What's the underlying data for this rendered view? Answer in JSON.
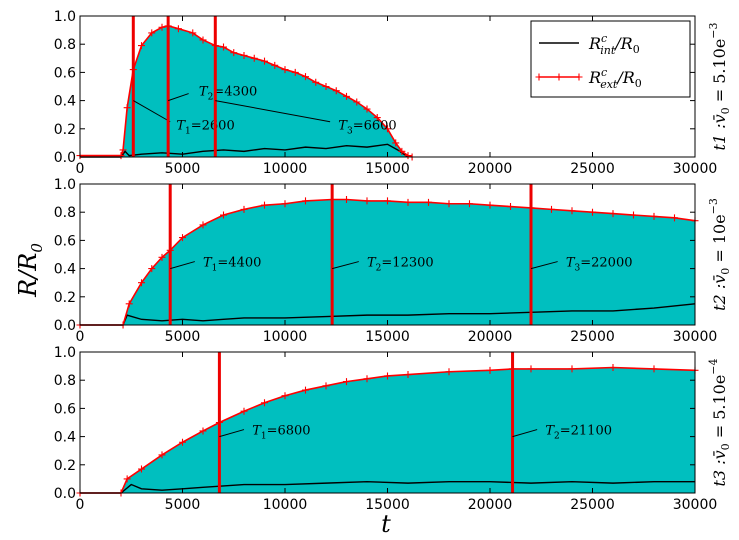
{
  "figure": {
    "ylabel": "R/R",
    "ylabel_sub": "0",
    "xlabel": "t"
  },
  "chart_data": [
    {
      "type": "area",
      "panel_label": "t1 :v̄₀ = 5.10e⁻³",
      "panel_label_parts": {
        "prefix": "t1",
        "eq": "= 5.10e",
        "exp": "−3"
      },
      "xlim": [
        0,
        30000
      ],
      "ylim": [
        0,
        1.0
      ],
      "xticks": [
        "0",
        "5000",
        "10000",
        "15000",
        "20000",
        "25000",
        "30000"
      ],
      "yticks": [
        "0.0",
        "0.2",
        "0.4",
        "0.6",
        "0.8",
        "1.0"
      ],
      "legend_position": "top-right",
      "legend": [
        {
          "text": "R",
          "sup": "c",
          "sub": "int",
          "den": "/R",
          "den_sub": "0",
          "color": "#000000",
          "marker": "none"
        },
        {
          "text": "R",
          "sup": "c",
          "sub": "ext",
          "den": "/R",
          "den_sub": "0",
          "color": "#ff0000",
          "marker": "+"
        }
      ],
      "series": [
        {
          "name": "R^c_ext/R_0",
          "color": "#ff0000",
          "fill": "#00bfbf",
          "x": [
            0,
            2000,
            2100,
            2300,
            2600,
            3000,
            3500,
            4000,
            4300,
            4800,
            5500,
            6000,
            6600,
            7000,
            7500,
            8000,
            8500,
            9000,
            9500,
            10000,
            10500,
            11000,
            11500,
            12000,
            12500,
            13000,
            13500,
            14000,
            14500,
            15000,
            15400,
            15700,
            16000,
            16200
          ],
          "y": [
            0.01,
            0.01,
            0.05,
            0.35,
            0.62,
            0.79,
            0.88,
            0.92,
            0.93,
            0.91,
            0.88,
            0.83,
            0.79,
            0.78,
            0.74,
            0.72,
            0.7,
            0.68,
            0.65,
            0.62,
            0.6,
            0.57,
            0.53,
            0.5,
            0.47,
            0.43,
            0.39,
            0.34,
            0.28,
            0.2,
            0.1,
            0.04,
            0.01,
            0.0
          ]
        },
        {
          "name": "R^c_int/R_0",
          "color": "#000000",
          "x": [
            0,
            2000,
            2200,
            2400,
            3000,
            4000,
            5000,
            6000,
            7000,
            8000,
            9000,
            10000,
            11000,
            12000,
            13000,
            14000,
            15000,
            15500,
            16000
          ],
          "y": [
            0.0,
            0.0,
            0.04,
            0.01,
            0.02,
            0.03,
            0.02,
            0.04,
            0.05,
            0.04,
            0.06,
            0.05,
            0.07,
            0.06,
            0.08,
            0.07,
            0.09,
            0.05,
            0.0
          ]
        }
      ],
      "vlines": [
        {
          "x": 2600,
          "label": "T",
          "sub": "1",
          "value": "=2600",
          "label_x": 4700,
          "label_y": 0.23,
          "line_from": [
            2600,
            0.4
          ],
          "line_to": [
            4400,
            0.25
          ]
        },
        {
          "x": 4300,
          "label": "T",
          "sub": "2",
          "value": "=4300",
          "label_x": 5800,
          "label_y": 0.47,
          "line_from": [
            4300,
            0.4
          ],
          "line_to": [
            5300,
            0.45
          ]
        },
        {
          "x": 6600,
          "label": "T",
          "sub": "3",
          "value": "=6600",
          "label_x": 12600,
          "label_y": 0.23,
          "line_from": [
            6600,
            0.4
          ],
          "line_to": [
            12200,
            0.25
          ]
        }
      ]
    },
    {
      "type": "area",
      "panel_label": "t2 :v̄₀ = 10e⁻³",
      "panel_label_parts": {
        "prefix": "t2",
        "eq": "= 10e",
        "exp": "−3"
      },
      "xlim": [
        0,
        30000
      ],
      "ylim": [
        0,
        1.0
      ],
      "xticks": [
        "0",
        "5000",
        "10000",
        "15000",
        "20000",
        "25000",
        "30000"
      ],
      "yticks": [
        "0.0",
        "0.2",
        "0.4",
        "0.6",
        "0.8",
        "1.0"
      ],
      "series": [
        {
          "name": "R^c_ext/R_0",
          "color": "#ff0000",
          "fill": "#00bfbf",
          "x": [
            0,
            2100,
            2400,
            3000,
            3500,
            4000,
            4400,
            5000,
            6000,
            7000,
            8000,
            9000,
            10000,
            11000,
            12300,
            13000,
            14000,
            15000,
            16000,
            17000,
            18000,
            19000,
            20000,
            21000,
            22000,
            23000,
            24000,
            25000,
            26000,
            27000,
            28000,
            29000,
            30000
          ],
          "y": [
            0.0,
            0.0,
            0.15,
            0.3,
            0.4,
            0.48,
            0.53,
            0.62,
            0.71,
            0.78,
            0.82,
            0.85,
            0.86,
            0.88,
            0.89,
            0.89,
            0.88,
            0.88,
            0.87,
            0.87,
            0.86,
            0.86,
            0.85,
            0.84,
            0.83,
            0.82,
            0.81,
            0.8,
            0.79,
            0.78,
            0.77,
            0.76,
            0.74
          ]
        },
        {
          "name": "R^c_int/R_0",
          "color": "#000000",
          "x": [
            0,
            2100,
            2300,
            3000,
            4000,
            5000,
            6000,
            7000,
            8000,
            10000,
            12000,
            14000,
            16000,
            18000,
            20000,
            22000,
            24000,
            26000,
            28000,
            30000
          ],
          "y": [
            0.0,
            0.0,
            0.07,
            0.04,
            0.03,
            0.04,
            0.03,
            0.04,
            0.05,
            0.05,
            0.06,
            0.07,
            0.07,
            0.08,
            0.08,
            0.09,
            0.1,
            0.1,
            0.12,
            0.15
          ]
        }
      ],
      "vlines": [
        {
          "x": 4400,
          "label": "T",
          "sub": "1",
          "value": "=4400",
          "label_x": 6000,
          "label_y": 0.45,
          "line_from": [
            4400,
            0.4
          ],
          "line_to": [
            5600,
            0.45
          ]
        },
        {
          "x": 12300,
          "label": "T",
          "sub": "2",
          "value": "=12300",
          "label_x": 14000,
          "label_y": 0.45,
          "line_from": [
            12300,
            0.4
          ],
          "line_to": [
            13600,
            0.45
          ]
        },
        {
          "x": 22000,
          "label": "T",
          "sub": "3",
          "value": "=22000",
          "label_x": 23700,
          "label_y": 0.45,
          "line_from": [
            22000,
            0.4
          ],
          "line_to": [
            23300,
            0.45
          ]
        }
      ]
    },
    {
      "type": "area",
      "panel_label": "t3 :v̄₀ = 5.10e⁻⁴",
      "panel_label_parts": {
        "prefix": "t3",
        "eq": "= 5.10e",
        "exp": "−4"
      },
      "xlim": [
        0,
        30000
      ],
      "ylim": [
        0,
        1.0
      ],
      "xticks": [
        "0",
        "5000",
        "10000",
        "15000",
        "20000",
        "25000",
        "30000"
      ],
      "yticks": [
        "0.0",
        "0.2",
        "0.4",
        "0.6",
        "0.8",
        "1.0"
      ],
      "series": [
        {
          "name": "R^c_ext/R_0",
          "color": "#ff0000",
          "fill": "#00bfbf",
          "x": [
            0,
            2000,
            2300,
            3000,
            4000,
            5000,
            6000,
            6800,
            8000,
            9000,
            10000,
            11000,
            12000,
            13000,
            14000,
            15000,
            16000,
            18000,
            20000,
            21100,
            22000,
            24000,
            26000,
            28000,
            30000
          ],
          "y": [
            0.0,
            0.0,
            0.1,
            0.17,
            0.27,
            0.36,
            0.44,
            0.5,
            0.58,
            0.64,
            0.69,
            0.73,
            0.76,
            0.79,
            0.81,
            0.83,
            0.84,
            0.86,
            0.87,
            0.88,
            0.88,
            0.88,
            0.89,
            0.88,
            0.87
          ]
        },
        {
          "name": "R^c_int/R_0",
          "color": "#000000",
          "x": [
            0,
            2000,
            2500,
            3000,
            4000,
            5000,
            6000,
            7000,
            8000,
            10000,
            12000,
            14000,
            16000,
            18000,
            20000,
            22000,
            24000,
            26000,
            28000,
            30000
          ],
          "y": [
            0.0,
            0.0,
            0.06,
            0.03,
            0.02,
            0.03,
            0.04,
            0.05,
            0.06,
            0.06,
            0.07,
            0.08,
            0.07,
            0.08,
            0.08,
            0.07,
            0.08,
            0.07,
            0.08,
            0.08
          ]
        }
      ],
      "vlines": [
        {
          "x": 6800,
          "label": "T",
          "sub": "1",
          "value": "=6800",
          "label_x": 8400,
          "label_y": 0.45,
          "line_from": [
            6800,
            0.4
          ],
          "line_to": [
            8000,
            0.45
          ]
        },
        {
          "x": 21100,
          "label": "T",
          "sub": "2",
          "value": "=21100",
          "label_x": 22700,
          "label_y": 0.45,
          "line_from": [
            21100,
            0.4
          ],
          "line_to": [
            22300,
            0.45
          ]
        }
      ]
    }
  ]
}
